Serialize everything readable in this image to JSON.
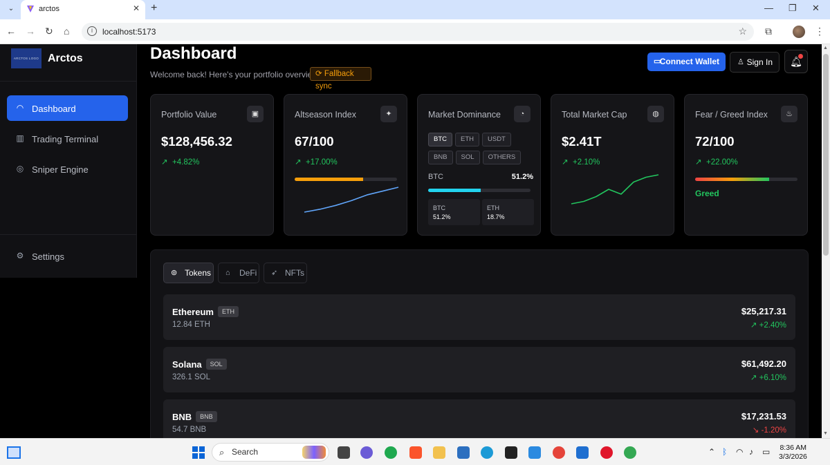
{
  "browser": {
    "tab_title": "arctos",
    "url": "localhost:5173"
  },
  "sidebar": {
    "logo_text": "ARCTOS LOGO",
    "brand": "Arctos",
    "items": [
      {
        "label": "Dashboard",
        "icon": "gauge-icon"
      },
      {
        "label": "Trading Terminal",
        "icon": "bar-chart-icon"
      },
      {
        "label": "Sniper Engine",
        "icon": "target-icon"
      }
    ],
    "settings_label": "Settings"
  },
  "header": {
    "title": "Dashboard",
    "subtitle": "Welcome back! Here's your portfolio overview",
    "fallback_badge": "Fallback sync",
    "connect_wallet": "Connect Wallet",
    "sign_in": "Sign In"
  },
  "cards": {
    "portfolio": {
      "title": "Portfolio Value",
      "value": "$128,456.32",
      "change": "+4.82%"
    },
    "altseason": {
      "title": "Altseason Index",
      "value": "67/100",
      "change": "+17.00%",
      "progress": 0.67,
      "sparkline": [
        2,
        3.5,
        5.5,
        8,
        11,
        13,
        15
      ]
    },
    "dominance": {
      "title": "Market Dominance",
      "chips": [
        "BTC",
        "ETH",
        "USDT",
        "BNB",
        "SOL",
        "OTHERS"
      ],
      "selected": "BTC",
      "label": "BTC",
      "pct": "51.2%",
      "progress": 0.512,
      "mini": [
        {
          "name": "BTC",
          "value": "51.2%"
        },
        {
          "name": "ETH",
          "value": "18.7%"
        }
      ]
    },
    "marketcap": {
      "title": "Total Market Cap",
      "value": "$2.41T",
      "change": "+2.10%",
      "sparkline": [
        2,
        3,
        5,
        8,
        6,
        11,
        13,
        14
      ]
    },
    "feargreed": {
      "title": "Fear / Greed Index",
      "value": "72/100",
      "change": "+22.00%",
      "progress": 0.72,
      "label": "Greed"
    }
  },
  "tabs": [
    "Tokens",
    "DeFi",
    "NFTs"
  ],
  "tokens": [
    {
      "name": "Ethereum",
      "symbol": "ETH",
      "amount": "12.84 ETH",
      "value": "$25,217.31",
      "change": "+2.40%",
      "up": true
    },
    {
      "name": "Solana",
      "symbol": "SOL",
      "amount": "326.1 SOL",
      "value": "$61,492.20",
      "change": "+6.10%",
      "up": true
    },
    {
      "name": "BNB",
      "symbol": "BNB",
      "amount": "54.7 BNB",
      "value": "$17,231.53",
      "change": "-1.20%",
      "up": false
    }
  ],
  "taskbar": {
    "search_placeholder": "Search",
    "time": "8:36 AM",
    "date": "3/3/2026"
  },
  "colors": {
    "accent": "#2563eb",
    "up": "#22c55e",
    "down": "#ef4444",
    "warning": "#f59e0b",
    "cyan": "#22d3ee"
  }
}
